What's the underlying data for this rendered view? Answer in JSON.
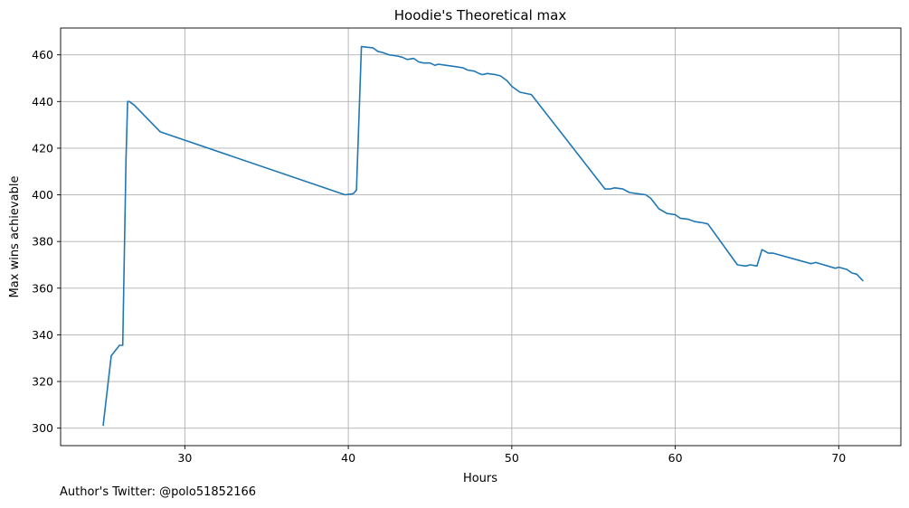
{
  "footnote": "Author's Twitter: @polo51852166",
  "chart_data": {
    "type": "line",
    "title": "Hoodie's Theoretical max",
    "xlabel": "Hours",
    "ylabel": "Max wins achievable",
    "xlim": [
      22.4,
      73.8
    ],
    "ylim": [
      292.5,
      471.5
    ],
    "xticks": [
      30,
      40,
      50,
      60,
      70
    ],
    "yticks": [
      300,
      320,
      340,
      360,
      380,
      400,
      420,
      440,
      460
    ],
    "grid": true,
    "colors": {
      "line": "#1f77b4",
      "grid": "#b0b0b0"
    },
    "series": [
      {
        "x": [
          25.0,
          25.5,
          26.0,
          26.2,
          26.4,
          26.5,
          26.6,
          26.9,
          28.5,
          39.8,
          40.3,
          40.5,
          40.8,
          41.5,
          41.8,
          42.1,
          42.5,
          43.0,
          43.3,
          43.6,
          44.0,
          44.3,
          44.6,
          45.0,
          45.3,
          45.5,
          46.0,
          46.5,
          47.0,
          47.3,
          47.7,
          48.0,
          48.2,
          48.5,
          49.0,
          49.3,
          49.7,
          50.0,
          50.5,
          51.2,
          55.7,
          56.0,
          56.3,
          56.8,
          57.2,
          57.7,
          58.2,
          58.5,
          59.0,
          59.5,
          60.0,
          60.3,
          60.8,
          61.2,
          61.7,
          62.0,
          63.8,
          64.3,
          64.6,
          65.0,
          65.3,
          65.7,
          66.0,
          68.3,
          68.6,
          69.8,
          70.0,
          70.5,
          70.8,
          71.1,
          71.5
        ],
        "y": [
          301,
          331,
          335.5,
          335.5,
          415,
          440,
          440,
          438.5,
          427,
          400,
          400.5,
          402,
          463.5,
          463,
          461.5,
          461,
          460,
          459.5,
          459,
          458,
          458.5,
          457,
          456.5,
          456.5,
          455.5,
          456,
          455.5,
          455,
          454.5,
          453.5,
          453,
          452,
          451.5,
          452,
          451.5,
          451,
          449,
          446.5,
          444,
          443,
          402.5,
          402.5,
          403,
          402.5,
          401,
          400.5,
          400,
          398.5,
          394,
          392,
          391.5,
          390,
          389.5,
          388.5,
          388,
          387.5,
          370,
          369.5,
          370,
          369.5,
          376.5,
          375,
          375,
          370.5,
          371,
          368.5,
          369,
          368,
          366.5,
          366,
          363
        ]
      }
    ]
  }
}
